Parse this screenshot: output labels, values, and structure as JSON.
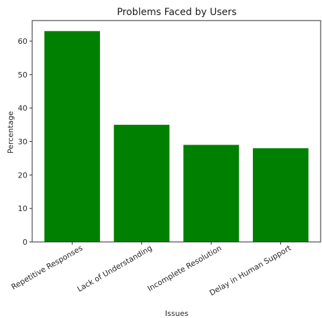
{
  "chart_data": {
    "type": "bar",
    "title": "Problems Faced by Users",
    "xlabel": "Issues",
    "ylabel": "Percentage",
    "categories": [
      "Repetitive Responses",
      "Lack of Understanding",
      "Incomplete Resolution",
      "Delay in Human Support"
    ],
    "values": [
      63,
      35,
      29,
      28
    ],
    "ylim": [
      0,
      66.15
    ],
    "yticks": [
      0,
      10,
      20,
      30,
      40,
      50,
      60
    ],
    "bar_color": "#008000",
    "grid": false,
    "legend": "none"
  }
}
